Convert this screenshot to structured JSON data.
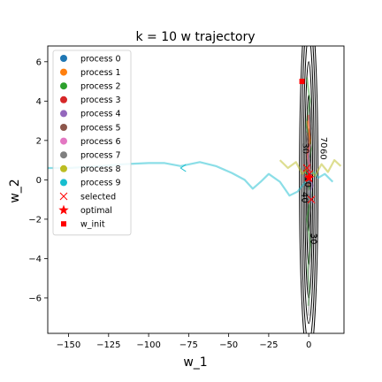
{
  "chart_data": {
    "type": "line",
    "title": "k = 10 w trajectory",
    "xlabel": "w_1",
    "ylabel": "w_2",
    "xlim": [
      -163,
      22
    ],
    "ylim": [
      -7.8,
      6.8
    ],
    "xticks": [
      -150,
      -125,
      -100,
      -75,
      -50,
      -25,
      0
    ],
    "yticks": [
      -6,
      -4,
      -2,
      0,
      2,
      4,
      6
    ],
    "xtick_labels": [
      "−150",
      "−125",
      "−100",
      "−75",
      "−50",
      "−25",
      "0"
    ],
    "ytick_labels": [
      "−6",
      "−4",
      "−2",
      "0",
      "2",
      "4",
      "6"
    ],
    "grid": false,
    "legend_position": "top-left",
    "legend": [
      {
        "label": "process 0",
        "marker": "circle",
        "color": "#1f77b4"
      },
      {
        "label": "process 1",
        "marker": "circle",
        "color": "#ff7f0e"
      },
      {
        "label": "process 2",
        "marker": "circle",
        "color": "#2ca02c"
      },
      {
        "label": "process 3",
        "marker": "circle",
        "color": "#d62728"
      },
      {
        "label": "process 4",
        "marker": "circle",
        "color": "#9467bd"
      },
      {
        "label": "process 5",
        "marker": "circle",
        "color": "#8c564b"
      },
      {
        "label": "process 6",
        "marker": "circle",
        "color": "#e377c2"
      },
      {
        "label": "process 7",
        "marker": "circle",
        "color": "#7f7f7f"
      },
      {
        "label": "process 8",
        "marker": "circle",
        "color": "#bcbd22"
      },
      {
        "label": "process 9",
        "marker": "circle",
        "color": "#17becf"
      },
      {
        "label": "selected",
        "marker": "x",
        "color": "#ff0000"
      },
      {
        "label": "optimal",
        "marker": "star",
        "color": "#ff0000"
      },
      {
        "label": "w_init",
        "marker": "square",
        "color": "#ff0000"
      }
    ],
    "contours": {
      "center": [
        0,
        0
      ],
      "semi_axes": [
        [
          2.6,
          0.6
        ],
        [
          4.3,
          1.4
        ],
        [
          6.0,
          2.4
        ],
        [
          7.3,
          3.4
        ],
        [
          8.3,
          4.6
        ],
        [
          9.2,
          5.8
        ]
      ],
      "color": "#000000",
      "labels": [
        {
          "text": "70",
          "x": 7.5,
          "y": 1.9
        },
        {
          "text": "60",
          "x": 7.3,
          "y": 1.3
        },
        {
          "text": "30",
          "x": -3.8,
          "y": 1.6
        },
        {
          "text": "10",
          "x": -2.4,
          "y": -0.1
        },
        {
          "text": "40",
          "x": -4.3,
          "y": -0.9
        },
        {
          "text": "30",
          "x": 1.4,
          "y": -3.0
        }
      ]
    },
    "series": [
      {
        "color": "#17becf",
        "alpha": 0.5,
        "points": [
          [
            -165,
            0.6
          ],
          [
            -150,
            0.6
          ],
          [
            -130,
            0.7
          ],
          [
            -115,
            0.8
          ],
          [
            -100,
            0.85
          ],
          [
            -90,
            0.85
          ],
          [
            -80,
            0.7
          ],
          [
            -68,
            0.9
          ],
          [
            -58,
            0.7
          ],
          [
            -48,
            0.35
          ],
          [
            -40,
            0.0
          ],
          [
            -35,
            -0.45
          ],
          [
            -30,
            -0.1
          ],
          [
            -25,
            0.3
          ],
          [
            -18,
            -0.1
          ],
          [
            -12,
            -0.8
          ],
          [
            -7,
            -0.6
          ],
          [
            -3,
            -0.2
          ],
          [
            0,
            0.1
          ],
          [
            3,
            0.4
          ],
          [
            6,
            0.1
          ],
          [
            10,
            0.3
          ],
          [
            15,
            -0.1
          ]
        ]
      },
      {
        "color": "#bcbd22",
        "alpha": 0.5,
        "points": [
          [
            -18,
            1.0
          ],
          [
            -13,
            0.6
          ],
          [
            -8,
            0.9
          ],
          [
            -4,
            0.3
          ],
          [
            0,
            0.6
          ],
          [
            4,
            0.2
          ],
          [
            8,
            0.8
          ],
          [
            12,
            0.4
          ],
          [
            16,
            1.0
          ],
          [
            20,
            0.7
          ]
        ]
      },
      {
        "color": "#2ca02c",
        "alpha": 0.45,
        "points": [
          [
            -1.2,
            5.2
          ],
          [
            0.8,
            4.0
          ],
          [
            -1.5,
            2.8
          ],
          [
            1.5,
            1.6
          ],
          [
            -1.8,
            0.4
          ],
          [
            1.6,
            -0.8
          ],
          [
            -1.2,
            -2.0
          ],
          [
            1.0,
            -3.3
          ],
          [
            -0.6,
            -4.6
          ],
          [
            0.4,
            -5.6
          ],
          [
            -0.2,
            -6.4
          ]
        ]
      },
      {
        "color": "#7f7f7f",
        "alpha": 0.45,
        "points": [
          [
            -0.8,
            3.6
          ],
          [
            1.2,
            2.6
          ],
          [
            -1.6,
            1.6
          ],
          [
            1.7,
            0.6
          ],
          [
            -1.6,
            -0.4
          ],
          [
            1.4,
            -1.4
          ],
          [
            -1.2,
            -2.5
          ],
          [
            0.9,
            -3.8
          ],
          [
            -0.5,
            -5.0
          ],
          [
            0.2,
            -6.1
          ],
          [
            0.0,
            -6.9
          ]
        ]
      },
      {
        "color": "#d62728",
        "alpha": 0.5,
        "points": [
          [
            -0.3,
            3.3
          ],
          [
            0.6,
            2.2
          ],
          [
            -0.8,
            1.3
          ],
          [
            0.7,
            0.6
          ],
          [
            -0.4,
            0.1
          ],
          [
            0.2,
            -0.3
          ]
        ]
      },
      {
        "color": "#ff7f0e",
        "alpha": 0.5,
        "points": [
          [
            -0.9,
            3.0
          ],
          [
            0.9,
            2.0
          ],
          [
            -0.7,
            1.1
          ],
          [
            0.5,
            0.4
          ],
          [
            -0.2,
            0.0
          ]
        ]
      },
      {
        "color": "#9467bd",
        "alpha": 0.5,
        "points": [
          [
            2.0,
            -1.2
          ],
          [
            0.8,
            -0.6
          ],
          [
            2.4,
            -0.3
          ],
          [
            0.4,
            0.2
          ],
          [
            1.4,
            0.5
          ]
        ]
      },
      {
        "color": "#1f77b4",
        "alpha": 0.5,
        "points": [
          [
            0.2,
            1.4
          ],
          [
            -0.5,
            0.8
          ],
          [
            0.4,
            0.3
          ],
          [
            -0.2,
            -0.2
          ]
        ]
      },
      {
        "color": "#8c564b",
        "alpha": 0.5,
        "points": [
          [
            -1.0,
            2.4
          ],
          [
            0.6,
            1.6
          ],
          [
            -0.6,
            0.9
          ],
          [
            0.3,
            0.4
          ]
        ]
      },
      {
        "color": "#e377c2",
        "alpha": 0.5,
        "points": [
          [
            1.0,
            1.8
          ],
          [
            -0.4,
            1.2
          ],
          [
            0.6,
            0.5
          ],
          [
            -0.1,
            0.1
          ]
        ]
      }
    ],
    "selected_markers": [
      [
        0.4,
        0.3
      ],
      [
        -1.2,
        0.6
      ],
      [
        1.6,
        -1.0
      ],
      [
        0.0,
        0.1
      ]
    ],
    "optimal": [
      0.2,
      0.1
    ],
    "w_init": [
      -4.2,
      5.0
    ],
    "arrow": {
      "x": -80,
      "y": 0.6,
      "direction": "left",
      "color": "#17becf"
    }
  }
}
